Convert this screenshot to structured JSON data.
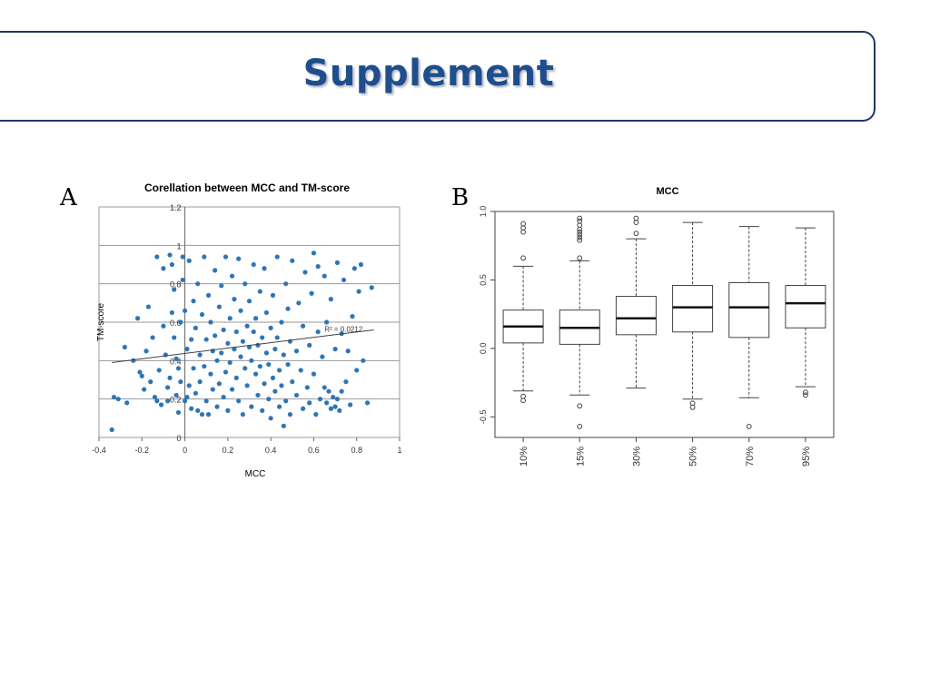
{
  "slide": {
    "title": "Supplement"
  },
  "panels": {
    "a_label": "A",
    "b_label": "B"
  },
  "chart_data": [
    {
      "type": "scatter",
      "title": "Corellation between MCC and TM-score",
      "xlabel": "MCC",
      "ylabel": "TM-score",
      "xlim": [
        -0.4,
        1
      ],
      "ylim": [
        0,
        1.2
      ],
      "x_ticks": [
        "-0.4",
        "-0.2",
        "0",
        "0.2",
        "0.4",
        "0.6",
        "0.8",
        "1"
      ],
      "y_ticks": [
        "0",
        "0.2",
        "0.4",
        "0.6",
        "0.8",
        "1",
        "1.2"
      ],
      "grid": "horizontal",
      "marker_color": "#2e75b6",
      "trendline": {
        "x": [
          -0.34,
          0.88
        ],
        "y": [
          0.39,
          0.56
        ]
      },
      "r2_label": "R² = 0.0212",
      "r2_at": [
        0.65,
        0.55
      ],
      "points": [
        [
          -0.34,
          0.04
        ],
        [
          -0.33,
          0.21
        ],
        [
          -0.31,
          0.2
        ],
        [
          -0.28,
          0.47
        ],
        [
          -0.27,
          0.18
        ],
        [
          -0.24,
          0.4
        ],
        [
          -0.22,
          0.62
        ],
        [
          -0.21,
          0.34
        ],
        [
          -0.2,
          0.32
        ],
        [
          -0.19,
          0.25
        ],
        [
          -0.18,
          0.45
        ],
        [
          -0.17,
          0.68
        ],
        [
          -0.16,
          0.29
        ],
        [
          -0.15,
          0.52
        ],
        [
          -0.14,
          0.21
        ],
        [
          -0.13,
          0.94
        ],
        [
          -0.13,
          0.19
        ],
        [
          -0.12,
          0.35
        ],
        [
          -0.11,
          0.17
        ],
        [
          -0.1,
          0.88
        ],
        [
          -0.1,
          0.58
        ],
        [
          -0.09,
          0.43
        ],
        [
          -0.08,
          0.26
        ],
        [
          -0.08,
          0.19
        ],
        [
          -0.07,
          0.95
        ],
        [
          -0.07,
          0.31
        ],
        [
          -0.06,
          0.9
        ],
        [
          -0.06,
          0.65
        ],
        [
          -0.05,
          0.77
        ],
        [
          -0.05,
          0.52
        ],
        [
          -0.04,
          0.41
        ],
        [
          -0.04,
          0.22
        ],
        [
          -0.03,
          0.36
        ],
        [
          -0.03,
          0.13
        ],
        [
          -0.02,
          0.6
        ],
        [
          -0.02,
          0.29
        ],
        [
          -0.01,
          0.94
        ],
        [
          -0.01,
          0.82
        ],
        [
          0,
          0.66
        ],
        [
          0,
          0.19
        ],
        [
          0.01,
          0.21
        ],
        [
          0.01,
          0.46
        ],
        [
          0.02,
          0.27
        ],
        [
          0.02,
          0.92
        ],
        [
          0.03,
          0.51
        ],
        [
          0.03,
          0.15
        ],
        [
          0.04,
          0.71
        ],
        [
          0.04,
          0.36
        ],
        [
          0.05,
          0.23
        ],
        [
          0.05,
          0.57
        ],
        [
          0.06,
          0.14
        ],
        [
          0.06,
          0.8
        ],
        [
          0.07,
          0.43
        ],
        [
          0.07,
          0.29
        ],
        [
          0.08,
          0.12
        ],
        [
          0.08,
          0.64
        ],
        [
          0.09,
          0.94
        ],
        [
          0.09,
          0.37
        ],
        [
          0.1,
          0.51
        ],
        [
          0.1,
          0.19
        ],
        [
          0.11,
          0.12
        ],
        [
          0.11,
          0.74
        ],
        [
          0.12,
          0.33
        ],
        [
          0.12,
          0.6
        ],
        [
          0.13,
          0.45
        ],
        [
          0.13,
          0.25
        ],
        [
          0.14,
          0.87
        ],
        [
          0.14,
          0.53
        ],
        [
          0.15,
          0.16
        ],
        [
          0.15,
          0.4
        ],
        [
          0.16,
          0.68
        ],
        [
          0.16,
          0.28
        ],
        [
          0.17,
          0.44
        ],
        [
          0.17,
          0.79
        ],
        [
          0.18,
          0.21
        ],
        [
          0.18,
          0.56
        ],
        [
          0.19,
          0.34
        ],
        [
          0.19,
          0.94
        ],
        [
          0.2,
          0.49
        ],
        [
          0.2,
          0.14
        ],
        [
          0.21,
          0.62
        ],
        [
          0.21,
          0.39
        ],
        [
          0.22,
          0.84
        ],
        [
          0.22,
          0.25
        ],
        [
          0.23,
          0.46
        ],
        [
          0.23,
          0.72
        ],
        [
          0.24,
          0.31
        ],
        [
          0.24,
          0.55
        ],
        [
          0.25,
          0.19
        ],
        [
          0.25,
          0.93
        ],
        [
          0.26,
          0.42
        ],
        [
          0.26,
          0.66
        ],
        [
          0.27,
          0.12
        ],
        [
          0.27,
          0.5
        ],
        [
          0.28,
          0.36
        ],
        [
          0.28,
          0.8
        ],
        [
          0.29,
          0.58
        ],
        [
          0.29,
          0.27
        ],
        [
          0.3,
          0.47
        ],
        [
          0.3,
          0.71
        ],
        [
          0.31,
          0.16
        ],
        [
          0.31,
          0.4
        ],
        [
          0.32,
          0.9
        ],
        [
          0.32,
          0.55
        ],
        [
          0.33,
          0.33
        ],
        [
          0.33,
          0.62
        ],
        [
          0.34,
          0.22
        ],
        [
          0.34,
          0.48
        ],
        [
          0.35,
          0.76
        ],
        [
          0.35,
          0.37
        ],
        [
          0.36,
          0.14
        ],
        [
          0.36,
          0.52
        ],
        [
          0.37,
          0.28
        ],
        [
          0.37,
          0.88
        ],
        [
          0.38,
          0.44
        ],
        [
          0.38,
          0.65
        ],
        [
          0.39,
          0.2
        ],
        [
          0.39,
          0.38
        ],
        [
          0.4,
          0.57
        ],
        [
          0.4,
          0.1
        ],
        [
          0.41,
          0.31
        ],
        [
          0.41,
          0.74
        ],
        [
          0.42,
          0.46
        ],
        [
          0.42,
          0.24
        ],
        [
          0.43,
          0.94
        ],
        [
          0.43,
          0.52
        ],
        [
          0.44,
          0.35
        ],
        [
          0.44,
          0.16
        ],
        [
          0.45,
          0.6
        ],
        [
          0.45,
          0.27
        ],
        [
          0.46,
          0.06
        ],
        [
          0.46,
          0.43
        ],
        [
          0.47,
          0.8
        ],
        [
          0.47,
          0.19
        ],
        [
          0.48,
          0.38
        ],
        [
          0.48,
          0.67
        ],
        [
          0.49,
          0.12
        ],
        [
          0.49,
          0.5
        ],
        [
          0.5,
          0.29
        ],
        [
          0.5,
          0.92
        ],
        [
          0.52,
          0.45
        ],
        [
          0.52,
          0.22
        ],
        [
          0.53,
          0.7
        ],
        [
          0.54,
          0.35
        ],
        [
          0.55,
          0.15
        ],
        [
          0.55,
          0.58
        ],
        [
          0.56,
          0.86
        ],
        [
          0.57,
          0.26
        ],
        [
          0.58,
          0.48
        ],
        [
          0.58,
          0.18
        ],
        [
          0.59,
          0.75
        ],
        [
          0.6,
          0.96
        ],
        [
          0.6,
          0.33
        ],
        [
          0.61,
          0.12
        ],
        [
          0.62,
          0.55
        ],
        [
          0.62,
          0.89
        ],
        [
          0.63,
          0.2
        ],
        [
          0.64,
          0.42
        ],
        [
          0.65,
          0.84
        ],
        [
          0.65,
          0.26
        ],
        [
          0.66,
          0.18
        ],
        [
          0.66,
          0.6
        ],
        [
          0.67,
          0.24
        ],
        [
          0.68,
          0.15
        ],
        [
          0.68,
          0.72
        ],
        [
          0.69,
          0.21
        ],
        [
          0.7,
          0.16
        ],
        [
          0.7,
          0.46
        ],
        [
          0.71,
          0.91
        ],
        [
          0.71,
          0.2
        ],
        [
          0.72,
          0.14
        ],
        [
          0.73,
          0.24
        ],
        [
          0.73,
          0.54
        ],
        [
          0.74,
          0.82
        ],
        [
          0.75,
          0.29
        ],
        [
          0.76,
          0.45
        ],
        [
          0.77,
          0.17
        ],
        [
          0.78,
          0.63
        ],
        [
          0.79,
          0.88
        ],
        [
          0.8,
          0.35
        ],
        [
          0.81,
          0.76
        ],
        [
          0.82,
          0.9
        ],
        [
          0.83,
          0.4
        ],
        [
          0.85,
          0.18
        ],
        [
          0.87,
          0.78
        ]
      ]
    },
    {
      "type": "box",
      "title": "MCC",
      "xlabel": "",
      "ylabel": "",
      "ylim": [
        -0.65,
        1.0
      ],
      "y_ticks": [
        "-0.5",
        "0.0",
        "0.5",
        "1.0"
      ],
      "categories": [
        "10%",
        "15%",
        "30%",
        "50%",
        "70%",
        "95%"
      ],
      "boxes": [
        {
          "min": -0.31,
          "q1": 0.04,
          "median": 0.16,
          "q3": 0.28,
          "max": 0.6,
          "outliers": [
            0.91,
            0.88,
            0.85,
            0.66,
            -0.35,
            -0.38
          ]
        },
        {
          "min": -0.34,
          "q1": 0.03,
          "median": 0.15,
          "q3": 0.28,
          "max": 0.64,
          "outliers": [
            0.95,
            0.93,
            0.9,
            0.87,
            0.85,
            0.83,
            0.81,
            0.79,
            0.66,
            -0.42,
            -0.57
          ]
        },
        {
          "min": -0.29,
          "q1": 0.1,
          "median": 0.22,
          "q3": 0.38,
          "max": 0.8,
          "outliers": [
            0.95,
            0.92,
            0.84
          ]
        },
        {
          "min": -0.37,
          "q1": 0.12,
          "median": 0.3,
          "q3": 0.46,
          "max": 0.92,
          "outliers": [
            -0.4,
            -0.43
          ]
        },
        {
          "min": -0.36,
          "q1": 0.08,
          "median": 0.3,
          "q3": 0.48,
          "max": 0.89,
          "outliers": [
            -0.57
          ]
        },
        {
          "min": -0.28,
          "q1": 0.15,
          "median": 0.33,
          "q3": 0.46,
          "max": 0.88,
          "outliers": [
            -0.32,
            -0.34
          ]
        }
      ]
    }
  ]
}
